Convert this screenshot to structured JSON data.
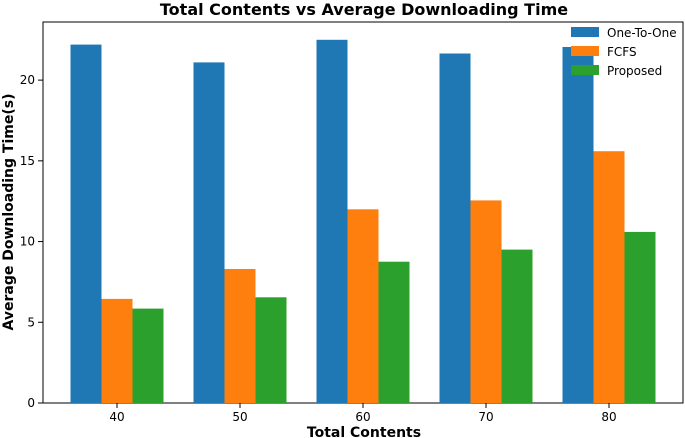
{
  "chart_data": {
    "type": "bar",
    "title": "Total Contents vs Average Downloading Time",
    "xlabel": "Total Contents",
    "ylabel": "Average Downloading Time(s)",
    "categories": [
      "40",
      "50",
      "60",
      "70",
      "80"
    ],
    "series": [
      {
        "name": "One-To-One",
        "color": "#1f77b4",
        "values": [
          22.2,
          21.1,
          22.5,
          21.65,
          22.05
        ]
      },
      {
        "name": "FCFS",
        "color": "#ff7f0e",
        "values": [
          6.45,
          8.3,
          12.0,
          12.55,
          15.6
        ]
      },
      {
        "name": "Proposed",
        "color": "#2ca02c",
        "values": [
          5.85,
          6.55,
          8.75,
          9.5,
          10.6
        ]
      }
    ],
    "yticks": [
      "0",
      "5",
      "10",
      "15",
      "20"
    ],
    "ylim": [
      0,
      23.6
    ],
    "grid": false,
    "legend": "top-right"
  }
}
